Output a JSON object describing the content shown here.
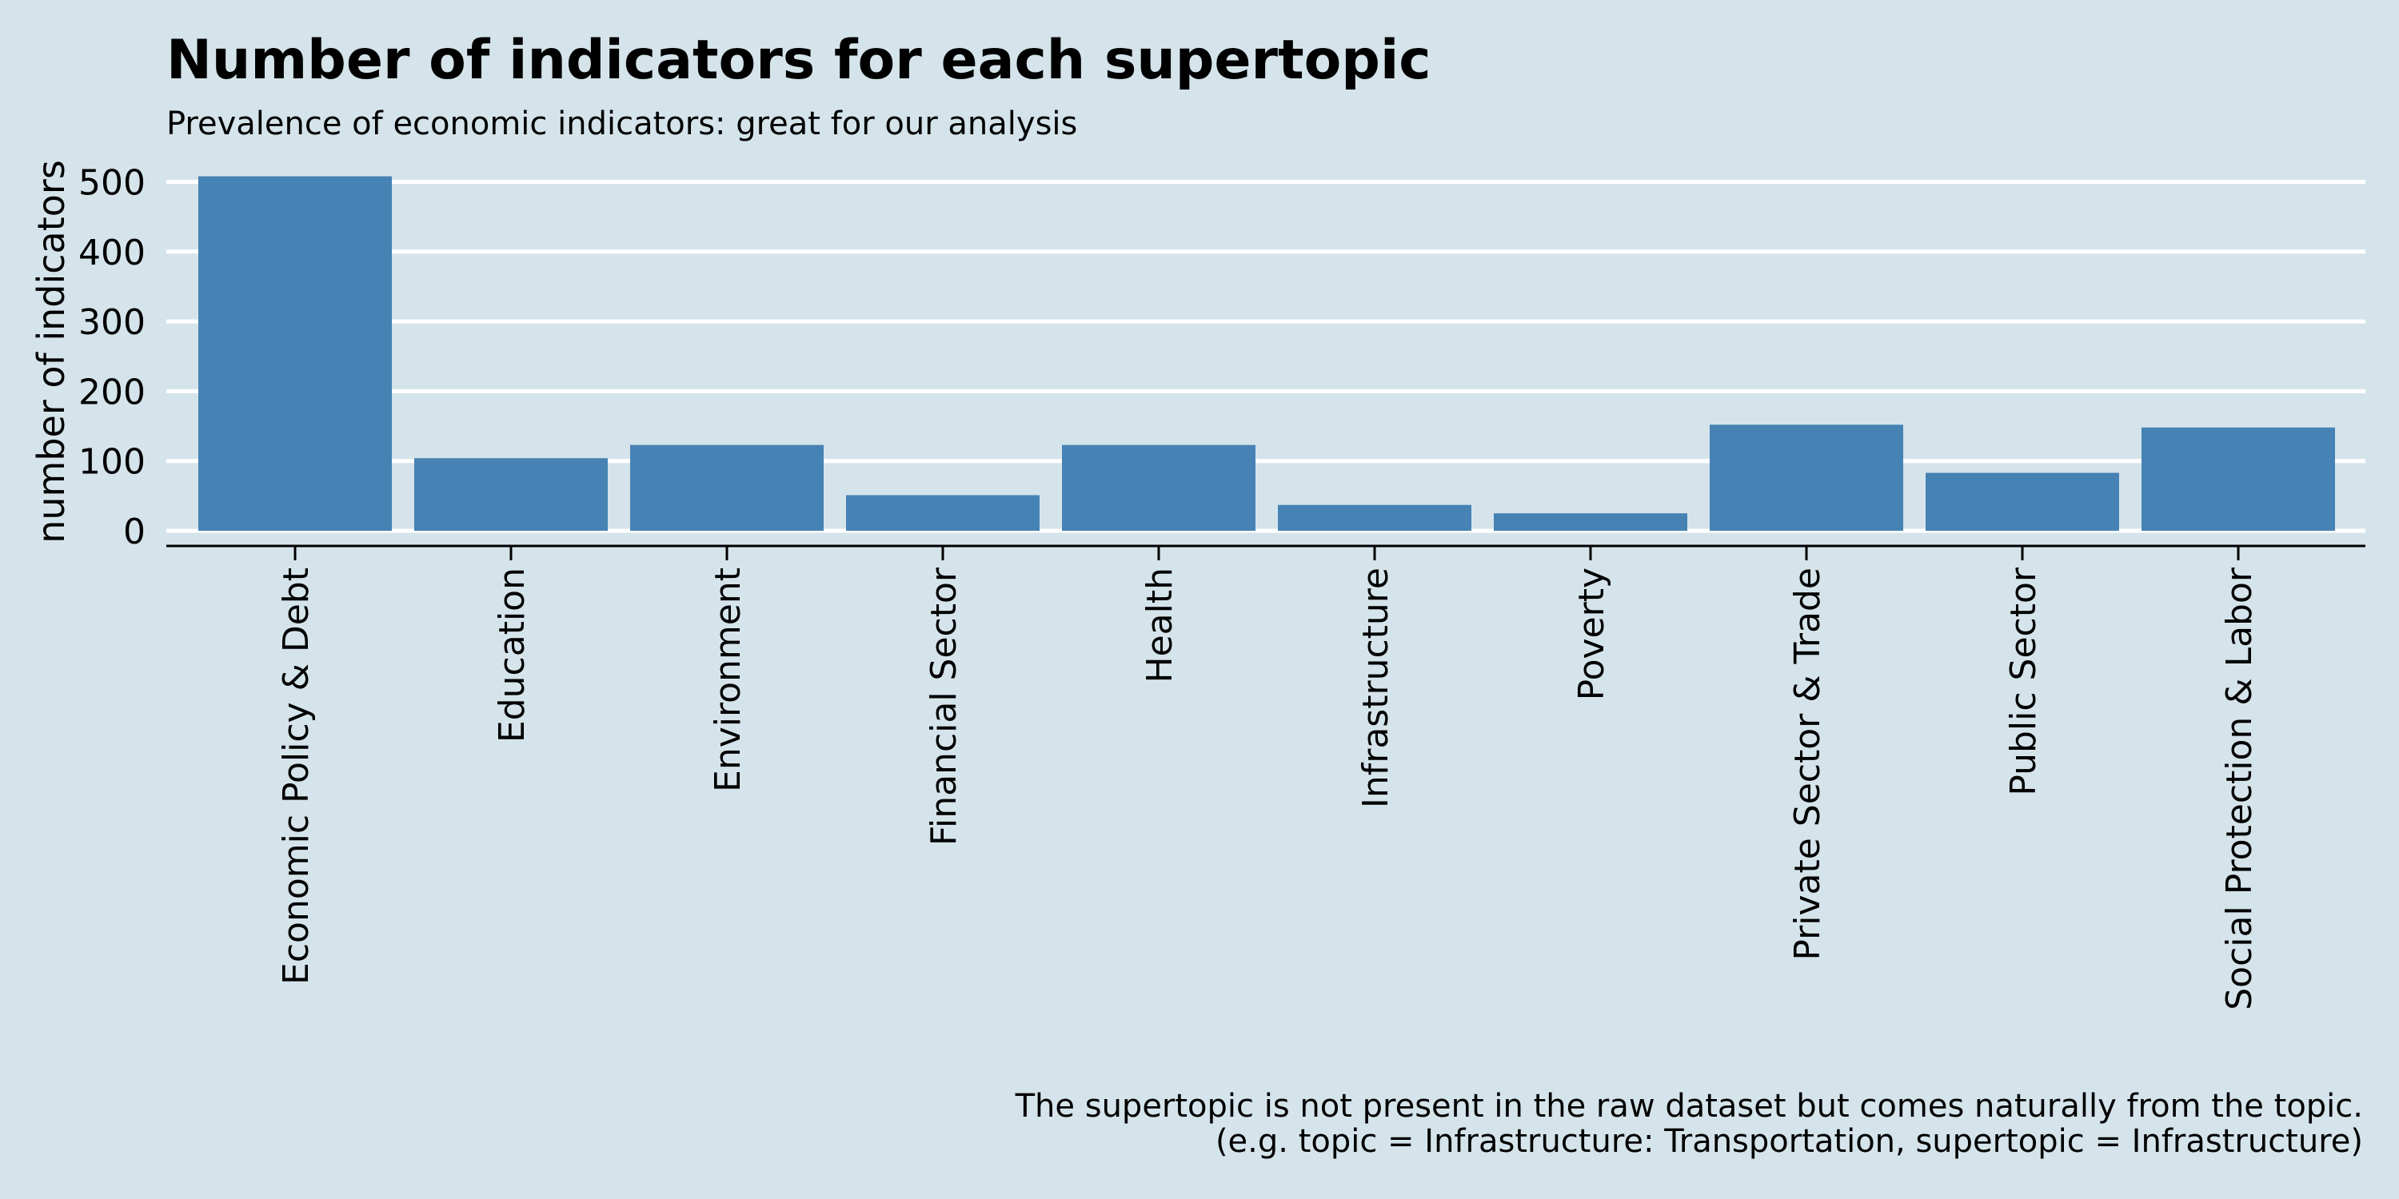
{
  "chart_data": {
    "type": "bar",
    "title": "Number of indicators for each supertopic",
    "subtitle": "Prevalence of economic indicators: great for our analysis",
    "xlabel": "",
    "ylabel": "number of indicators",
    "categories": [
      "Economic Policy & Debt",
      "Education",
      "Environment",
      "Financial Sector",
      "Health",
      "Infrastructure",
      "Poverty",
      "Private Sector & Trade",
      "Public Sector",
      "Social Protection & Labor"
    ],
    "values": [
      508,
      104,
      123,
      51,
      123,
      37,
      25,
      152,
      83,
      148
    ],
    "yticks": [
      0,
      100,
      200,
      300,
      400,
      500
    ],
    "ylim": [
      0,
      510
    ],
    "grid": true,
    "legend": "none",
    "bar_color": "#4682b4",
    "caption_lines": [
      "The supertopic is not present in the raw dataset but comes naturally from the topic.",
      "(e.g. topic = Infrastructure: Transportation, supertopic = Infrastructure)"
    ]
  }
}
